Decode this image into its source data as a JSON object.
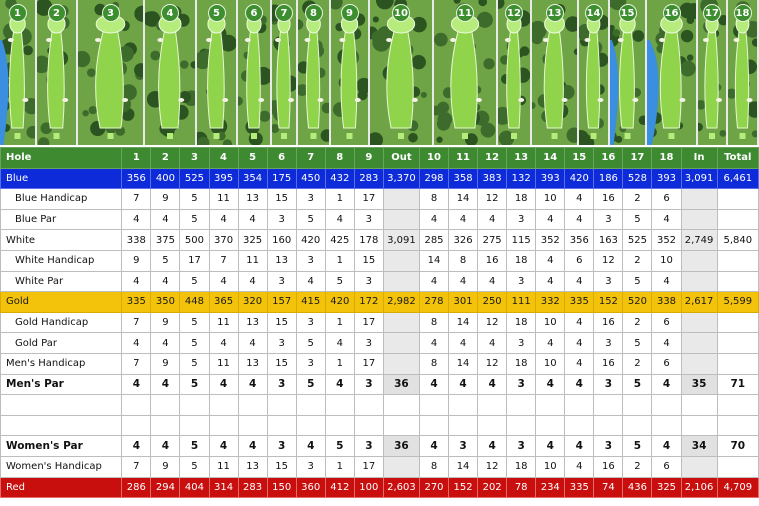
{
  "hole_badges": [
    "1",
    "2",
    "3",
    "4",
    "5",
    "6",
    "7",
    "8",
    "9",
    "10",
    "11",
    "12",
    "13",
    "14",
    "15",
    "16",
    "17",
    "18"
  ],
  "colors": {
    "header": "#3e8a31",
    "blue": "#0d2bd8",
    "gold": "#f3c20b",
    "red": "#c90e0e",
    "badge": "#3c8e2f",
    "fairway": "#8fd44a",
    "green": "#b6ec7c",
    "rough": "#6fa446",
    "trees": "#2b5421",
    "water": "#3a8fe0",
    "bunker": "#f4f1e6"
  },
  "header": {
    "label": "Hole",
    "holes": [
      "1",
      "2",
      "3",
      "4",
      "5",
      "6",
      "7",
      "8",
      "9"
    ],
    "out": "Out",
    "back": [
      "10",
      "11",
      "12",
      "13",
      "14",
      "15",
      "16",
      "17",
      "18"
    ],
    "in": "In",
    "total": "Total"
  },
  "rows": [
    {
      "label": "Blue",
      "front": [
        "356",
        "400",
        "525",
        "395",
        "354",
        "175",
        "450",
        "432",
        "283"
      ],
      "out": "3,370",
      "back": [
        "298",
        "358",
        "383",
        "132",
        "393",
        "420",
        "186",
        "528",
        "393"
      ],
      "in": "3,091",
      "total": "6,461"
    },
    {
      "label": "Blue Handicap",
      "front": [
        "7",
        "9",
        "5",
        "11",
        "13",
        "15",
        "3",
        "1",
        "17"
      ],
      "out": "",
      "back": [
        "8",
        "14",
        "12",
        "18",
        "10",
        "4",
        "16",
        "2",
        "6"
      ],
      "in": "",
      "total": ""
    },
    {
      "label": "Blue Par",
      "front": [
        "4",
        "4",
        "5",
        "4",
        "4",
        "3",
        "5",
        "4",
        "3"
      ],
      "out": "",
      "back": [
        "4",
        "4",
        "4",
        "3",
        "4",
        "4",
        "3",
        "5",
        "4"
      ],
      "in": "",
      "total": ""
    },
    {
      "label": "White",
      "front": [
        "338",
        "375",
        "500",
        "370",
        "325",
        "160",
        "420",
        "425",
        "178"
      ],
      "out": "3,091",
      "back": [
        "285",
        "326",
        "275",
        "115",
        "352",
        "356",
        "163",
        "525",
        "352"
      ],
      "in": "2,749",
      "total": "5,840"
    },
    {
      "label": "White Handicap",
      "front": [
        "9",
        "5",
        "17",
        "7",
        "11",
        "13",
        "3",
        "1",
        "15"
      ],
      "out": "",
      "back": [
        "14",
        "8",
        "16",
        "18",
        "4",
        "6",
        "12",
        "2",
        "10"
      ],
      "in": "",
      "total": ""
    },
    {
      "label": "White Par",
      "front": [
        "4",
        "4",
        "5",
        "4",
        "4",
        "3",
        "4",
        "5",
        "3"
      ],
      "out": "",
      "back": [
        "4",
        "4",
        "4",
        "3",
        "4",
        "4",
        "3",
        "5",
        "4"
      ],
      "in": "",
      "total": ""
    },
    {
      "label": "Gold",
      "front": [
        "335",
        "350",
        "448",
        "365",
        "320",
        "157",
        "415",
        "420",
        "172"
      ],
      "out": "2,982",
      "back": [
        "278",
        "301",
        "250",
        "111",
        "332",
        "335",
        "152",
        "520",
        "338"
      ],
      "in": "2,617",
      "total": "5,599"
    },
    {
      "label": "Gold Handicap",
      "front": [
        "7",
        "9",
        "5",
        "11",
        "13",
        "15",
        "3",
        "1",
        "17"
      ],
      "out": "",
      "back": [
        "8",
        "14",
        "12",
        "18",
        "10",
        "4",
        "16",
        "2",
        "6"
      ],
      "in": "",
      "total": ""
    },
    {
      "label": "Gold Par",
      "front": [
        "4",
        "4",
        "5",
        "4",
        "4",
        "3",
        "5",
        "4",
        "3"
      ],
      "out": "",
      "back": [
        "4",
        "4",
        "4",
        "3",
        "4",
        "4",
        "3",
        "5",
        "4"
      ],
      "in": "",
      "total": ""
    },
    {
      "label": "Men's Handicap",
      "front": [
        "7",
        "9",
        "5",
        "11",
        "13",
        "15",
        "3",
        "1",
        "17"
      ],
      "out": "",
      "back": [
        "8",
        "14",
        "12",
        "18",
        "10",
        "4",
        "16",
        "2",
        "6"
      ],
      "in": "",
      "total": ""
    },
    {
      "label": "Men's Par",
      "front": [
        "4",
        "4",
        "5",
        "4",
        "4",
        "3",
        "5",
        "4",
        "3"
      ],
      "out": "36",
      "back": [
        "4",
        "4",
        "4",
        "3",
        "4",
        "4",
        "3",
        "5",
        "4"
      ],
      "in": "35",
      "total": "71"
    },
    {
      "label": "",
      "front": [
        "",
        "",
        "",
        "",
        "",
        "",
        "",
        "",
        ""
      ],
      "out": "",
      "back": [
        "",
        "",
        "",
        "",
        "",
        "",
        "",
        "",
        ""
      ],
      "in": "",
      "total": ""
    },
    {
      "label": "",
      "front": [
        "",
        "",
        "",
        "",
        "",
        "",
        "",
        "",
        ""
      ],
      "out": "",
      "back": [
        "",
        "",
        "",
        "",
        "",
        "",
        "",
        "",
        ""
      ],
      "in": "",
      "total": ""
    },
    {
      "label": "Women's Par",
      "front": [
        "4",
        "4",
        "5",
        "4",
        "4",
        "3",
        "4",
        "5",
        "3"
      ],
      "out": "36",
      "back": [
        "4",
        "3",
        "4",
        "3",
        "4",
        "4",
        "3",
        "5",
        "4"
      ],
      "in": "34",
      "total": "70"
    },
    {
      "label": "Women's Handicap",
      "front": [
        "7",
        "9",
        "5",
        "11",
        "13",
        "15",
        "3",
        "1",
        "17"
      ],
      "out": "",
      "back": [
        "8",
        "14",
        "12",
        "18",
        "10",
        "4",
        "16",
        "2",
        "6"
      ],
      "in": "",
      "total": ""
    },
    {
      "label": "Red",
      "front": [
        "286",
        "294",
        "404",
        "314",
        "283",
        "150",
        "360",
        "412",
        "100"
      ],
      "out": "2,603",
      "back": [
        "270",
        "152",
        "202",
        "78",
        "234",
        "335",
        "74",
        "436",
        "325"
      ],
      "in": "2,106",
      "total": "4,709"
    }
  ]
}
